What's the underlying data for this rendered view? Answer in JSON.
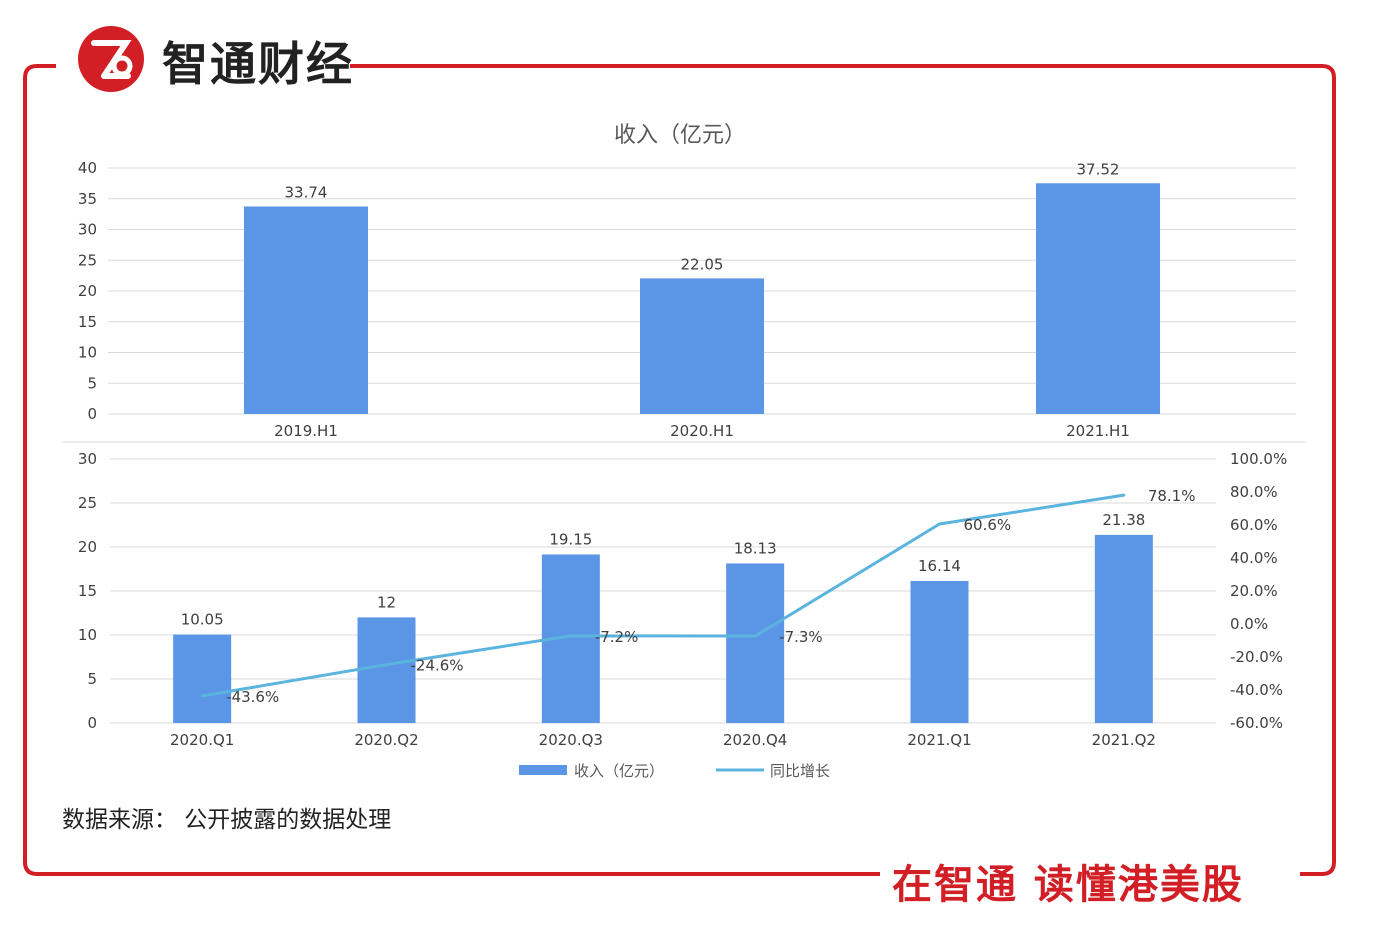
{
  "brand": {
    "logo_text": "智通财经",
    "slogan": "在智通 读懂港美股"
  },
  "source_note": "数据来源： 公开披露的数据处理",
  "colors": {
    "frame": "#d21f26",
    "bar": "#5b95e6",
    "line": "#5ab4de",
    "grid": "#d9d9d9",
    "text": "#404040"
  },
  "chart_data": [
    {
      "type": "bar",
      "title": "收入（亿元）",
      "categories": [
        "2019.H1",
        "2020.H1",
        "2021.H1"
      ],
      "values": [
        33.74,
        22.05,
        37.52
      ],
      "value_labels": [
        "33.74",
        "22.05",
        "37.52"
      ],
      "ylim": [
        0,
        40
      ],
      "yticks": [
        0,
        5,
        10,
        15,
        20,
        25,
        30,
        35,
        40
      ],
      "grid": true
    },
    {
      "type": "bar",
      "categories": [
        "2020.Q1",
        "2020.Q2",
        "2020.Q3",
        "2020.Q4",
        "2021.Q1",
        "2021.Q2"
      ],
      "series": [
        {
          "name": "收入（亿元）",
          "type": "bar",
          "axis": "left",
          "values": [
            10.05,
            12,
            19.15,
            18.13,
            16.14,
            21.38
          ],
          "labels": [
            "10.05",
            "12",
            "19.15",
            "18.13",
            "16.14",
            "21.38"
          ]
        },
        {
          "name": "同比增长",
          "type": "line",
          "axis": "right",
          "values": [
            -43.6,
            -24.6,
            -7.2,
            -7.3,
            60.6,
            78.1
          ],
          "labels": [
            "-43.6%",
            "-24.6%",
            "-7.2%",
            "-7.3%",
            "60.6%",
            "78.1%"
          ]
        }
      ],
      "ylim": [
        0,
        30
      ],
      "yticks": [
        0,
        5,
        10,
        15,
        20,
        25,
        30
      ],
      "y2lim": [
        -60,
        100
      ],
      "y2ticks": [
        "-60.0%",
        "-40.0%",
        "-20.0%",
        "0.0%",
        "20.0%",
        "40.0%",
        "60.0%",
        "80.0%",
        "100.0%"
      ],
      "legend": "bottom",
      "grid": true
    }
  ]
}
